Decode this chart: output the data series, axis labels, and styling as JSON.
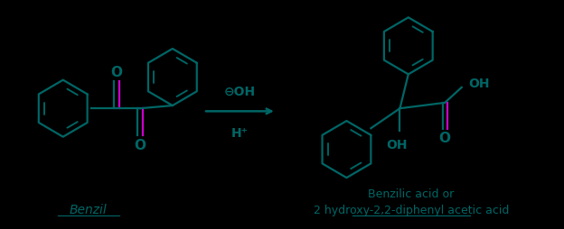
{
  "bg_color": "#000000",
  "teal": "#006666",
  "magenta": "#CC00CC",
  "label_benzil": "Benzil",
  "label_product": "Benzilic acid or\n2 hydroxy-2,2-diphenyl acetic acid",
  "reagent_top": "⊖OH",
  "reagent_bottom": "H⁺",
  "figsize": [
    6.24,
    2.55
  ],
  "dpi": 100
}
